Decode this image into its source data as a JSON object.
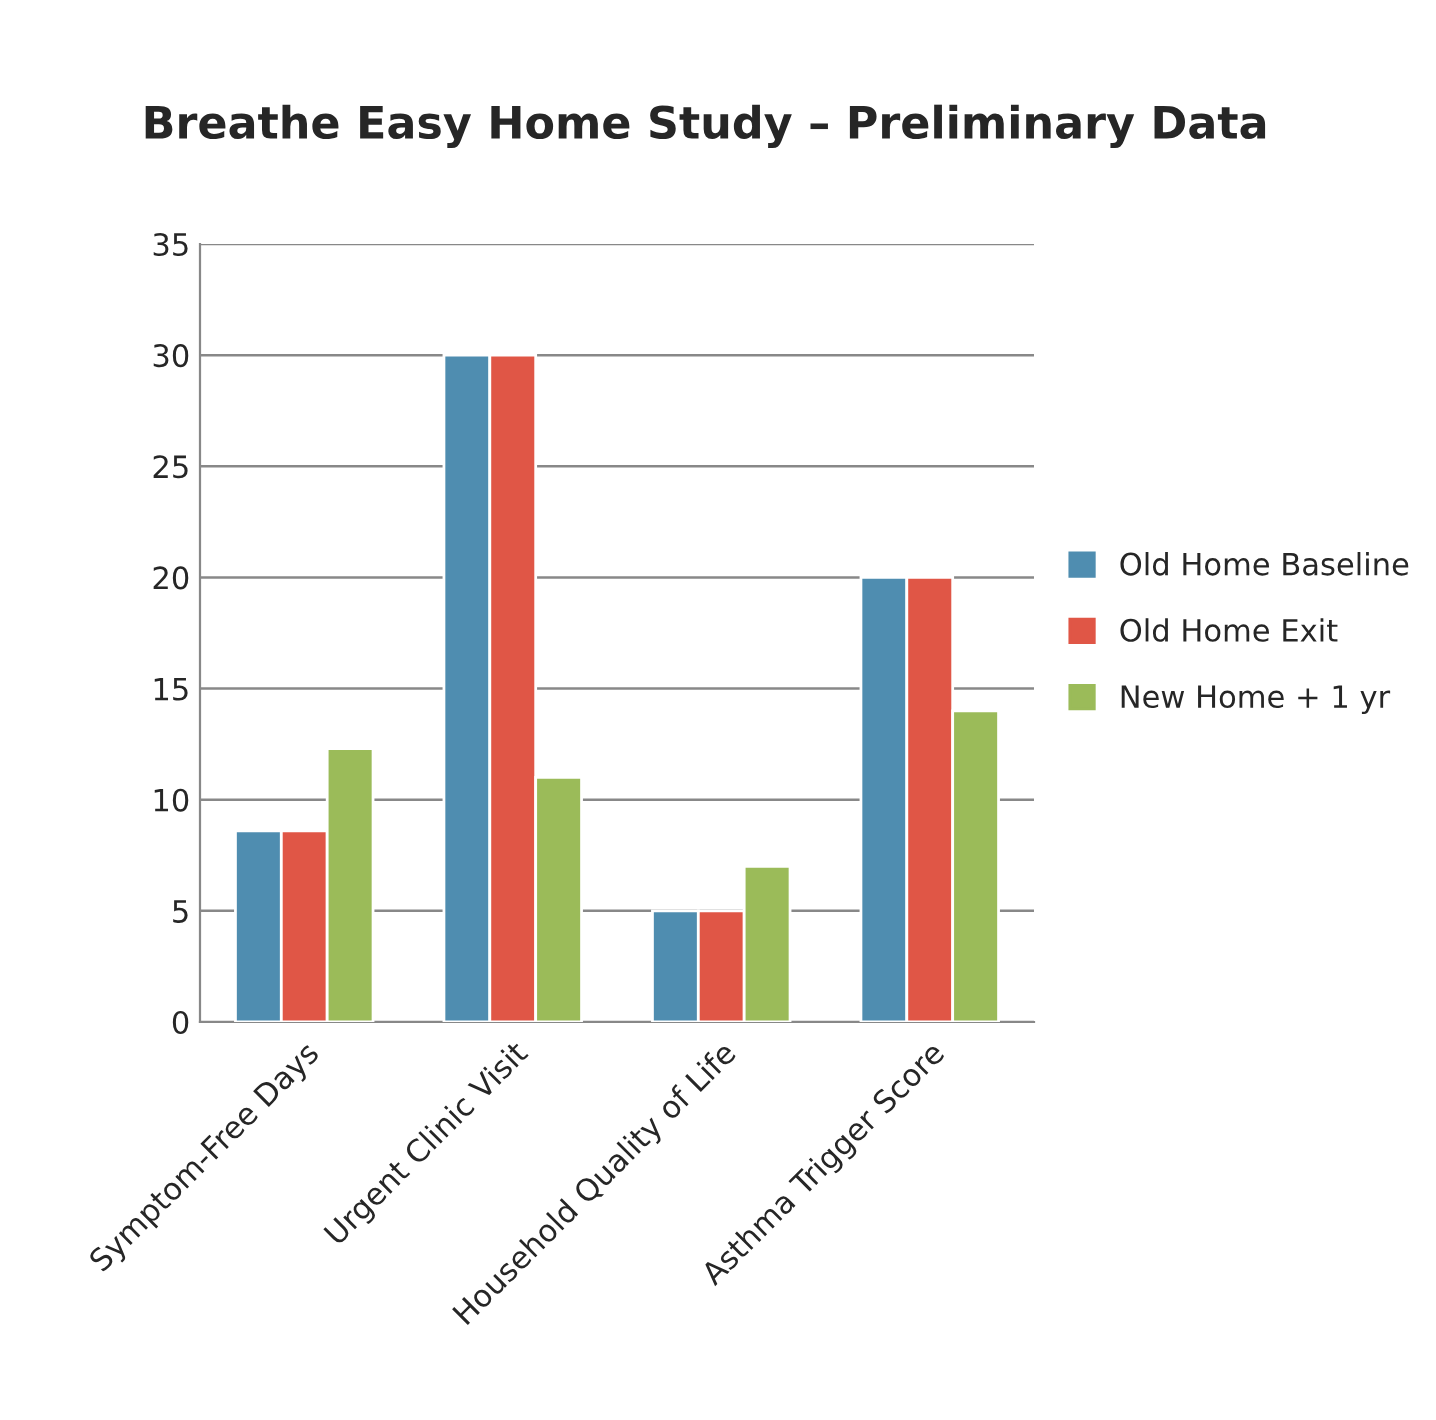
{
  "chart_data": {
    "type": "bar",
    "title": "Breathe Easy Home Study – Preliminary Data",
    "categories": [
      "Symptom-Free Days",
      "Urgent Clinic Visit",
      "Household Quality of Life",
      "Asthma Trigger Score"
    ],
    "series": [
      {
        "name": "Old Home Baseline",
        "color": "#4f8db0",
        "values": [
          8.6,
          30,
          5,
          20
        ]
      },
      {
        "name": "Old Home Exit",
        "color": "#e05646",
        "values": [
          8.6,
          30,
          5,
          20
        ]
      },
      {
        "name": "New Home + 1 yr",
        "color": "#9bbb59",
        "values": [
          12.3,
          11,
          7,
          14
        ]
      }
    ],
    "ylim": [
      0,
      35
    ],
    "yticks": [
      0,
      5,
      10,
      15,
      20,
      25,
      30,
      35
    ],
    "grid": "y",
    "legend": "right"
  }
}
